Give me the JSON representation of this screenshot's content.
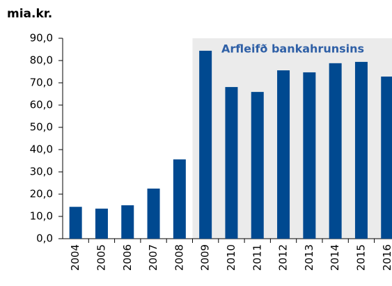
{
  "chart_data": {
    "type": "bar",
    "y_label": "mia.kr.",
    "categories": [
      "2004",
      "2005",
      "2006",
      "2007",
      "2008",
      "2009",
      "2010",
      "2011",
      "2012",
      "2013",
      "2014",
      "2015",
      "2016"
    ],
    "values": [
      14.3,
      13.5,
      15.0,
      22.5,
      35.6,
      84.4,
      68.1,
      65.9,
      75.6,
      74.7,
      78.8,
      79.4,
      72.8
    ],
    "color": "#004990",
    "ylim": [
      0,
      90
    ],
    "yticks": [
      {
        "value": 0,
        "label": "0,0"
      },
      {
        "value": 10,
        "label": "10,0"
      },
      {
        "value": 20,
        "label": "20,0"
      },
      {
        "value": 30,
        "label": "30,0"
      },
      {
        "value": 40,
        "label": "40,0"
      },
      {
        "value": 50,
        "label": "50,0"
      },
      {
        "value": 60,
        "label": "60,0"
      },
      {
        "value": 70,
        "label": "70,0"
      },
      {
        "value": 80,
        "label": "80,0"
      },
      {
        "value": 90,
        "label": "90,0"
      }
    ],
    "highlight": {
      "label": "Arfleifð bankahrunsins",
      "from": "2009",
      "color": "#ebebeb"
    }
  }
}
